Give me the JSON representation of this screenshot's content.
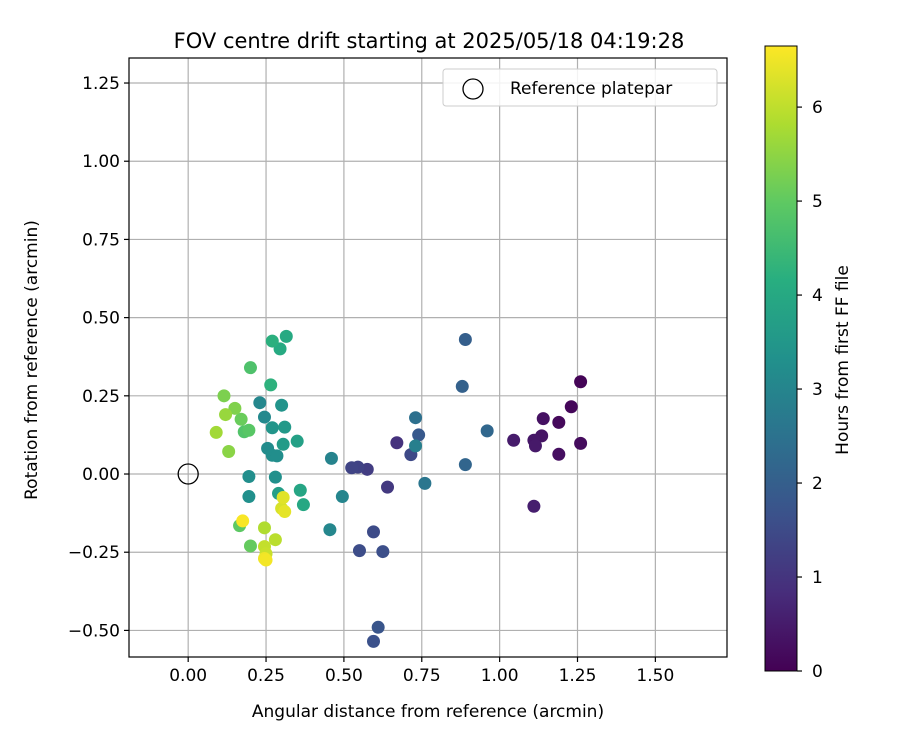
{
  "chart_data": {
    "type": "scatter",
    "title": "FOV centre drift starting at 2025/05/18 04:19:28",
    "xlabel": "Angular distance from reference (arcmin)",
    "ylabel": "Rotation from reference (arcmin)",
    "xlim": [
      -0.19,
      1.73
    ],
    "ylim": [
      -0.585,
      1.33
    ],
    "xticks": [
      0.0,
      0.25,
      0.5,
      0.75,
      1.0,
      1.25,
      1.5
    ],
    "xtick_labels": [
      "0.00",
      "0.25",
      "0.50",
      "0.75",
      "1.00",
      "1.25",
      "1.50"
    ],
    "yticks": [
      -0.5,
      -0.25,
      0.0,
      0.25,
      0.5,
      0.75,
      1.0,
      1.25
    ],
    "ytick_labels": [
      "−0.50",
      "−0.25",
      "0.00",
      "0.25",
      "0.50",
      "0.75",
      "1.00",
      "1.25"
    ],
    "grid": true,
    "legend": {
      "position": "top-right",
      "label": "Reference platepar"
    },
    "reference_point": {
      "x": 0.0,
      "y": 0.0
    },
    "colorbar": {
      "label": "Hours from first FF file",
      "colormap": "viridis",
      "range": [
        0,
        6.65
      ],
      "ticks": [
        0,
        1,
        2,
        3,
        4,
        5,
        6
      ],
      "tick_labels": [
        "0",
        "1",
        "2",
        "3",
        "4",
        "5",
        "6"
      ]
    },
    "points": [
      {
        "x": 1.26,
        "y": 0.295,
        "hours": 0.05
      },
      {
        "x": 1.23,
        "y": 0.215,
        "hours": 0.1
      },
      {
        "x": 1.19,
        "y": 0.165,
        "hours": 0.15
      },
      {
        "x": 1.26,
        "y": 0.098,
        "hours": 0.2
      },
      {
        "x": 1.19,
        "y": 0.063,
        "hours": 0.25
      },
      {
        "x": 1.14,
        "y": 0.177,
        "hours": 0.3
      },
      {
        "x": 1.135,
        "y": 0.122,
        "hours": 0.35
      },
      {
        "x": 1.11,
        "y": 0.108,
        "hours": 0.4
      },
      {
        "x": 1.115,
        "y": 0.09,
        "hours": 0.45
      },
      {
        "x": 1.045,
        "y": 0.108,
        "hours": 0.5
      },
      {
        "x": 1.11,
        "y": -0.103,
        "hours": 0.55
      },
      {
        "x": 0.67,
        "y": 0.1,
        "hours": 0.95
      },
      {
        "x": 0.64,
        "y": -0.042,
        "hours": 1.1
      },
      {
        "x": 0.575,
        "y": 0.015,
        "hours": 1.2
      },
      {
        "x": 0.545,
        "y": 0.022,
        "hours": 1.3
      },
      {
        "x": 0.525,
        "y": 0.02,
        "hours": 1.35
      },
      {
        "x": 0.715,
        "y": 0.062,
        "hours": 1.45
      },
      {
        "x": 0.595,
        "y": -0.185,
        "hours": 1.5
      },
      {
        "x": 0.55,
        "y": -0.245,
        "hours": 1.55
      },
      {
        "x": 0.625,
        "y": -0.248,
        "hours": 1.6
      },
      {
        "x": 0.595,
        "y": -0.535,
        "hours": 1.65
      },
      {
        "x": 0.61,
        "y": -0.49,
        "hours": 1.75
      },
      {
        "x": 0.74,
        "y": 0.125,
        "hours": 1.85
      },
      {
        "x": 0.89,
        "y": 0.43,
        "hours": 2.0
      },
      {
        "x": 0.88,
        "y": 0.28,
        "hours": 2.05
      },
      {
        "x": 0.89,
        "y": 0.03,
        "hours": 2.15
      },
      {
        "x": 0.96,
        "y": 0.138,
        "hours": 2.2
      },
      {
        "x": 0.73,
        "y": 0.18,
        "hours": 2.45
      },
      {
        "x": 0.76,
        "y": -0.03,
        "hours": 2.6
      },
      {
        "x": 0.73,
        "y": 0.09,
        "hours": 2.85
      },
      {
        "x": 0.46,
        "y": 0.05,
        "hours": 2.95
      },
      {
        "x": 0.495,
        "y": -0.072,
        "hours": 3.0
      },
      {
        "x": 0.455,
        "y": -0.178,
        "hours": 3.05
      },
      {
        "x": 0.23,
        "y": 0.228,
        "hours": 3.05
      },
      {
        "x": 0.245,
        "y": 0.182,
        "hours": 3.1
      },
      {
        "x": 0.255,
        "y": 0.082,
        "hours": 3.2
      },
      {
        "x": 0.27,
        "y": 0.06,
        "hours": 3.25
      },
      {
        "x": 0.285,
        "y": 0.058,
        "hours": 3.25
      },
      {
        "x": 0.195,
        "y": -0.008,
        "hours": 3.25
      },
      {
        "x": 0.28,
        "y": -0.01,
        "hours": 3.3
      },
      {
        "x": 0.195,
        "y": -0.072,
        "hours": 3.3
      },
      {
        "x": 0.3,
        "y": 0.22,
        "hours": 3.4
      },
      {
        "x": 0.27,
        "y": 0.148,
        "hours": 3.45
      },
      {
        "x": 0.31,
        "y": 0.15,
        "hours": 3.55
      },
      {
        "x": 0.305,
        "y": 0.095,
        "hours": 3.6
      },
      {
        "x": 0.29,
        "y": -0.062,
        "hours": 3.7
      },
      {
        "x": 0.35,
        "y": 0.105,
        "hours": 3.75
      },
      {
        "x": 0.36,
        "y": -0.052,
        "hours": 3.9
      },
      {
        "x": 0.37,
        "y": -0.098,
        "hours": 3.95
      },
      {
        "x": 0.315,
        "y": 0.44,
        "hours": 4.0
      },
      {
        "x": 0.295,
        "y": 0.4,
        "hours": 4.05
      },
      {
        "x": 0.27,
        "y": 0.425,
        "hours": 4.2
      },
      {
        "x": 0.265,
        "y": 0.285,
        "hours": 4.25
      },
      {
        "x": 0.2,
        "y": 0.34,
        "hours": 4.75
      },
      {
        "x": 0.18,
        "y": 0.135,
        "hours": 4.8
      },
      {
        "x": 0.195,
        "y": 0.14,
        "hours": 4.9
      },
      {
        "x": 0.165,
        "y": -0.165,
        "hours": 4.95
      },
      {
        "x": 0.2,
        "y": -0.23,
        "hours": 5.05
      },
      {
        "x": 0.17,
        "y": 0.175,
        "hours": 5.1
      },
      {
        "x": 0.115,
        "y": 0.25,
        "hours": 5.3
      },
      {
        "x": 0.15,
        "y": 0.21,
        "hours": 5.35
      },
      {
        "x": 0.13,
        "y": 0.072,
        "hours": 5.45
      },
      {
        "x": 0.12,
        "y": 0.19,
        "hours": 5.6
      },
      {
        "x": 0.09,
        "y": 0.133,
        "hours": 5.7
      },
      {
        "x": 0.245,
        "y": -0.172,
        "hours": 5.85
      },
      {
        "x": 0.28,
        "y": -0.21,
        "hours": 5.95
      },
      {
        "x": 0.245,
        "y": -0.232,
        "hours": 6.05
      },
      {
        "x": 0.25,
        "y": -0.255,
        "hours": 6.1
      },
      {
        "x": 0.3,
        "y": -0.11,
        "hours": 6.25
      },
      {
        "x": 0.305,
        "y": -0.075,
        "hours": 6.35
      },
      {
        "x": 0.31,
        "y": -0.12,
        "hours": 6.4
      },
      {
        "x": 0.245,
        "y": -0.27,
        "hours": 6.5
      },
      {
        "x": 0.25,
        "y": -0.275,
        "hours": 6.55
      },
      {
        "x": 0.175,
        "y": -0.15,
        "hours": 6.6
      }
    ]
  }
}
